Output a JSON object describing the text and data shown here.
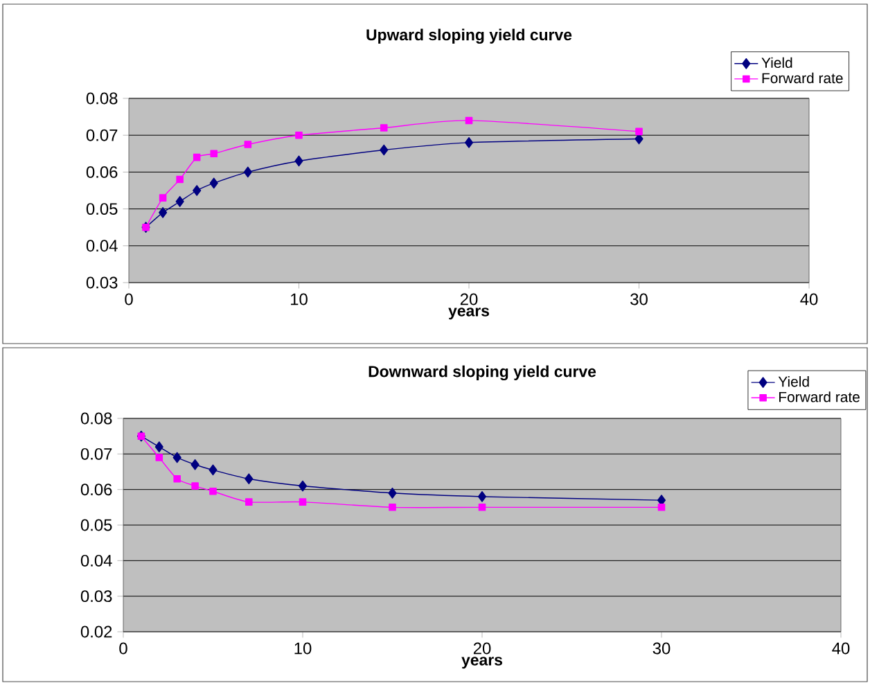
{
  "chart_data": [
    {
      "type": "line",
      "title": "Upward sloping yield curve",
      "xlabel": "years",
      "x": [
        1,
        2,
        3,
        4,
        5,
        7,
        10,
        15,
        20,
        30
      ],
      "series": [
        {
          "name": "Yield",
          "color": "#000080",
          "marker": "diamond",
          "values": [
            0.045,
            0.049,
            0.052,
            0.055,
            0.057,
            0.06,
            0.063,
            0.066,
            0.068,
            0.069
          ]
        },
        {
          "name": "Forward rate",
          "color": "#ff00ff",
          "marker": "square",
          "values": [
            0.045,
            0.053,
            0.058,
            0.064,
            0.065,
            0.0675,
            0.07,
            0.072,
            0.074,
            0.071
          ]
        }
      ],
      "xlim": [
        0,
        40
      ],
      "xticks": [
        0,
        10,
        20,
        30,
        40
      ],
      "ylim": [
        0.03,
        0.08
      ],
      "yticks": [
        0.03,
        0.04,
        0.05,
        0.06,
        0.07,
        0.08
      ],
      "grid": "y",
      "legend": "top right",
      "line_style": "solid"
    },
    {
      "type": "line",
      "title": "Downward sloping yield curve",
      "xlabel": "years",
      "x": [
        1,
        2,
        3,
        4,
        5,
        7,
        10,
        15,
        20,
        30
      ],
      "series": [
        {
          "name": "Yield",
          "color": "#000080",
          "marker": "diamond",
          "values": [
            0.075,
            0.072,
            0.069,
            0.067,
            0.0655,
            0.063,
            0.061,
            0.059,
            0.058,
            0.057
          ]
        },
        {
          "name": "Forward rate",
          "color": "#ff00ff",
          "marker": "square",
          "values": [
            0.075,
            0.069,
            0.063,
            0.061,
            0.0595,
            0.0565,
            0.0565,
            0.055,
            0.055,
            0.055
          ]
        }
      ],
      "xlim": [
        0,
        40
      ],
      "xticks": [
        0,
        10,
        20,
        30,
        40
      ],
      "ylim": [
        0.02,
        0.08
      ],
      "yticks": [
        0.02,
        0.03,
        0.04,
        0.05,
        0.06,
        0.07,
        0.08
      ],
      "grid": "y",
      "legend": "top right",
      "line_style": "solid"
    }
  ]
}
